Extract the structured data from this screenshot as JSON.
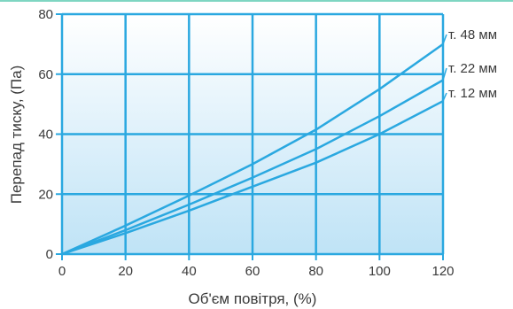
{
  "chart_data": {
    "type": "line",
    "xlabel": "Об'єм повітря, (%)",
    "ylabel": "Перепад тиску, (Па)",
    "xlim": [
      0,
      120
    ],
    "ylim": [
      0,
      80
    ],
    "x_ticks": [
      "0",
      "20",
      "40",
      "60",
      "80",
      "100",
      "120"
    ],
    "y_ticks": [
      "0",
      "20",
      "40",
      "60",
      "80"
    ],
    "grid": true,
    "colors": {
      "line": "#2aa8e0",
      "grid": "#2aa8e0",
      "axis": "#2aa8e0",
      "background_top": "#ffffff",
      "background_bottom": "#bfe3f6",
      "top_rule": "#7fd6c2"
    },
    "series": [
      {
        "name": "т. 48 мм",
        "x": [
          0,
          20,
          40,
          60,
          80,
          100,
          120
        ],
        "y": [
          0,
          9.5,
          19.5,
          30,
          41.5,
          55,
          70
        ]
      },
      {
        "name": "т. 22 мм",
        "x": [
          0,
          20,
          40,
          60,
          80,
          100,
          120
        ],
        "y": [
          0,
          8,
          16.5,
          25.5,
          35,
          46,
          58
        ]
      },
      {
        "name": "т. 12 мм",
        "x": [
          0,
          20,
          40,
          60,
          80,
          100,
          120
        ],
        "y": [
          0,
          7,
          14.5,
          22.5,
          30.5,
          40,
          51
        ]
      }
    ]
  }
}
